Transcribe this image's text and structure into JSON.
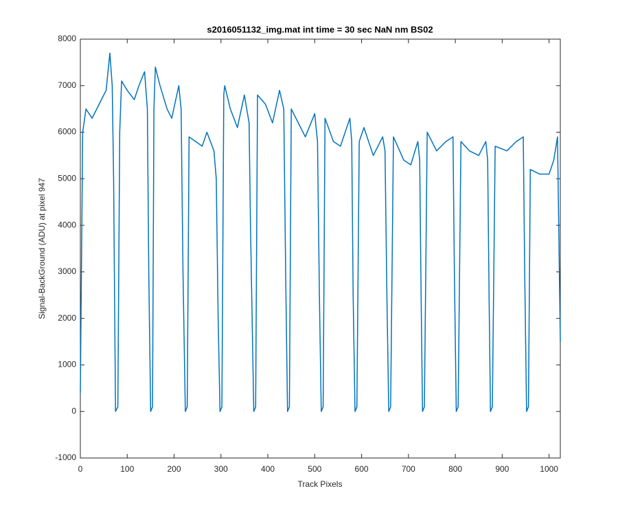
{
  "chart_data": {
    "type": "line",
    "title": "s2016051132_img.mat int time = 30 sec  NaN nm BS02",
    "x_label": "Track Pixels",
    "y_label": "Signal-BackGround (ADU) at pixel 947",
    "xlim": [
      0,
      1024
    ],
    "ylim": [
      -1000,
      8000
    ],
    "xticks": [
      0,
      100,
      200,
      300,
      400,
      500,
      600,
      700,
      800,
      900,
      1000
    ],
    "yticks": [
      -1000,
      0,
      1000,
      2000,
      3000,
      4000,
      5000,
      6000,
      7000,
      8000
    ],
    "grid": false,
    "series": [
      {
        "color": "#0072bd",
        "x": [
          0,
          5,
          12,
          25,
          40,
          55,
          63,
          68,
          71,
          75,
          80,
          84,
          88,
          100,
          115,
          125,
          137,
          143,
          146,
          150,
          154,
          157,
          160,
          170,
          185,
          195,
          210,
          215,
          219,
          224,
          228,
          232,
          260,
          270,
          285,
          290,
          294,
          298,
          302,
          306,
          308,
          320,
          335,
          350,
          360,
          363,
          370,
          374,
          378,
          395,
          410,
          425,
          434,
          438,
          442,
          446,
          450,
          465,
          480,
          500,
          506,
          510,
          514,
          518,
          522,
          540,
          555,
          575,
          579,
          582,
          586,
          590,
          595,
          605,
          625,
          645,
          650,
          654,
          658,
          662,
          668,
          690,
          705,
          720,
          724,
          727,
          730,
          734,
          740,
          760,
          780,
          795,
          798,
          802,
          806,
          812,
          830,
          850,
          865,
          869,
          872,
          875,
          879,
          885,
          910,
          930,
          945,
          948,
          952,
          956,
          960,
          980,
          1000,
          1010,
          1018,
          1024
        ],
        "values": [
          400,
          6000,
          6500,
          6300,
          6600,
          6900,
          7700,
          7000,
          5000,
          0,
          100,
          6000,
          7100,
          6900,
          6700,
          7000,
          7300,
          6500,
          3000,
          0,
          100,
          6500,
          7400,
          7000,
          6500,
          6300,
          7000,
          6500,
          3000,
          0,
          100,
          5900,
          5700,
          6000,
          5600,
          5000,
          2000,
          0,
          100,
          6800,
          7000,
          6500,
          6100,
          6800,
          6200,
          4000,
          0,
          100,
          6800,
          6600,
          6200,
          6900,
          6500,
          3000,
          0,
          100,
          6500,
          6200,
          5900,
          6400,
          5800,
          2500,
          0,
          100,
          6300,
          5800,
          5700,
          6300,
          5800,
          2500,
          0,
          100,
          5800,
          6100,
          5500,
          5900,
          5600,
          2500,
          0,
          100,
          5900,
          5400,
          5300,
          5800,
          5400,
          2500,
          0,
          100,
          6000,
          5600,
          5800,
          5900,
          3000,
          0,
          100,
          5800,
          5600,
          5500,
          5800,
          5400,
          2500,
          0,
          100,
          5700,
          5600,
          5800,
          5900,
          3000,
          0,
          100,
          5200,
          5100,
          5100,
          5400,
          5900,
          1500
        ]
      }
    ]
  }
}
